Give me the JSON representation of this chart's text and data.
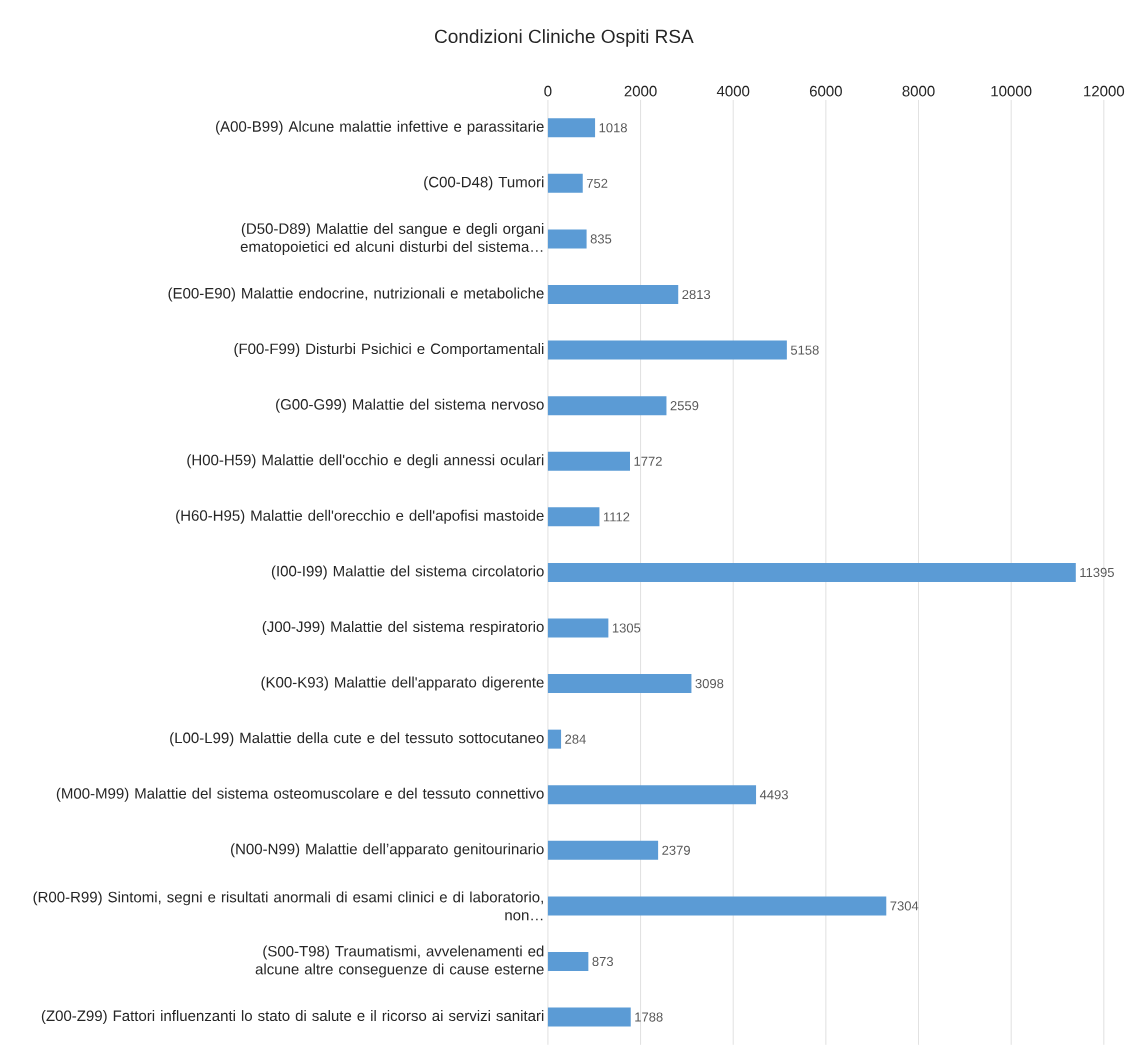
{
  "chart_data": {
    "type": "bar",
    "orientation": "horizontal",
    "title": "Condizioni Cliniche Ospiti RSA",
    "categories": [
      "(A00-B99) Alcune malattie infettive e parassitarie",
      "(C00-D48) Tumori",
      "(D50-D89) Malattie del sangue e degli organi ematopoietici ed alcuni disturbi del sistema…",
      "(E00-E90) Malattie endocrine, nutrizionali e metaboliche",
      "(F00-F99) Disturbi Psichici e Comportamentali",
      "(G00-G99) Malattie del sistema nervoso",
      "(H00-H59) Malattie dell'occhio e degli annessi oculari",
      "(H60-H95) Malattie dell'orecchio e dell'apofisi mastoide",
      "(I00-I99) Malattie del sistema circolatorio",
      "(J00-J99) Malattie del sistema respiratorio",
      "(K00-K93) Malattie dell'apparato digerente",
      "(L00-L99) Malattie della cute e del tessuto sottocutaneo",
      "(M00-M99) Malattie del sistema osteomuscolare e del tessuto connettivo",
      "(N00-N99) Malattie dell’apparato genitourinario",
      "(R00-R99) Sintomi, segni e risultati anormali di esami clinici e di laboratorio, non…",
      "(S00-T98) Traumatismi, avvelenamenti ed alcune altre conseguenze di cause esterne",
      "(Z00-Z99) Fattori influenzanti lo stato di salute e il ricorso ai servizi sanitari"
    ],
    "values": [
      1018,
      752,
      835,
      2813,
      5158,
      2559,
      1772,
      1112,
      11395,
      1305,
      3098,
      284,
      4493,
      2379,
      7304,
      873,
      1788
    ],
    "color": "#5b9bd5",
    "xlim": [
      0,
      12000
    ],
    "xticks": [
      0,
      2000,
      4000,
      6000,
      8000,
      10000,
      12000
    ],
    "grid": "x",
    "data_labels": true
  }
}
